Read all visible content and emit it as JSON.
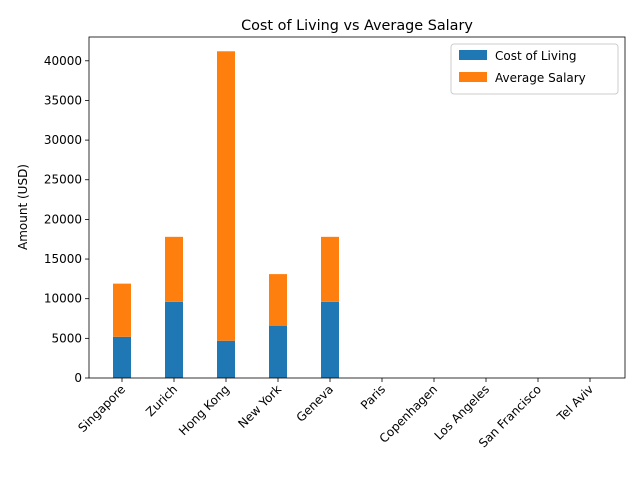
{
  "chart_data": {
    "type": "bar",
    "stacked": true,
    "title": "Cost of Living vs Average Salary",
    "xlabel": "",
    "ylabel": "Amount (USD)",
    "categories": [
      "Singapore",
      "Zurich",
      "Hong Kong",
      "New York",
      "Geneva",
      "Paris",
      "Copenhagen",
      "Los Angeles",
      "San Francisco",
      "Tel Aviv"
    ],
    "series": [
      {
        "name": "Cost of Living",
        "color": "#1f77b4",
        "values": [
          5200,
          9600,
          4700,
          6600,
          9600,
          0,
          0,
          0,
          0,
          0
        ]
      },
      {
        "name": "Average Salary",
        "color": "#ff7f0e",
        "values": [
          6700,
          8200,
          36500,
          6500,
          8200,
          0,
          0,
          0,
          0,
          0
        ]
      }
    ],
    "ylim": [
      0,
      43000
    ],
    "yticks": [
      0,
      5000,
      10000,
      15000,
      20000,
      25000,
      30000,
      35000,
      40000
    ],
    "legend_position": "top-right",
    "grid": false
  }
}
